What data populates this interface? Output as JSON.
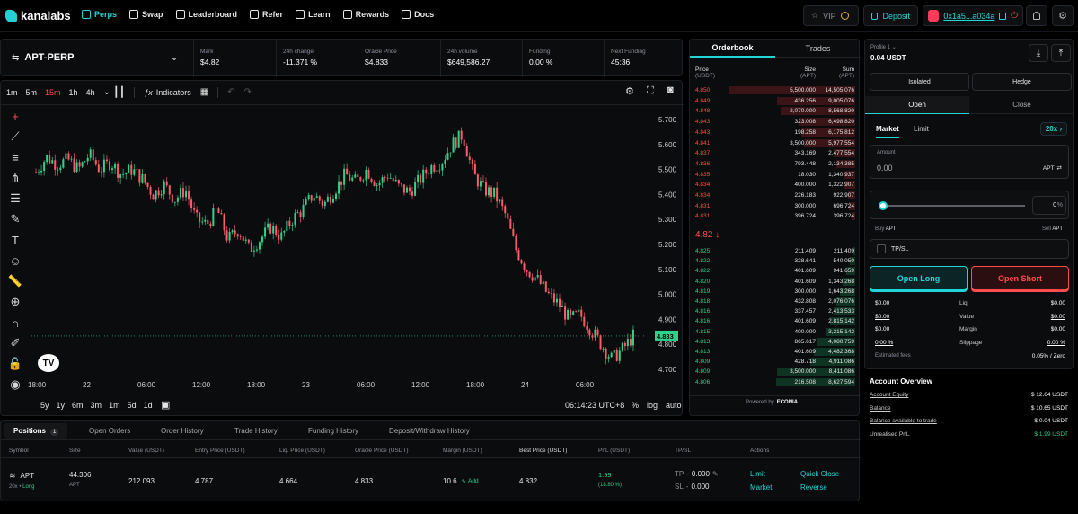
{
  "brand": {
    "name": "kanalabs",
    "accent": "#20d6d6"
  },
  "nav": {
    "items": [
      {
        "label": "Perps",
        "icon": "perps-icon"
      },
      {
        "label": "Swap",
        "icon": "swap-icon"
      },
      {
        "label": "Leaderboard",
        "icon": "leaderboard-icon"
      },
      {
        "label": "Refer",
        "icon": "refer-icon"
      },
      {
        "label": "Learn",
        "icon": "learn-icon"
      },
      {
        "label": "Rewards",
        "icon": "rewards-icon"
      },
      {
        "label": "Docs",
        "icon": "docs-icon"
      }
    ]
  },
  "header": {
    "vip": "VIP",
    "deposit": "Deposit",
    "wallet": "0x1a5...a034a"
  },
  "market": {
    "symbol": "APT-PERP",
    "stats": [
      {
        "label": "Mark",
        "value": "$4.82"
      },
      {
        "label": "24h change",
        "value": "-11.371 %"
      },
      {
        "label": "Oracle Price",
        "value": "$4.833"
      },
      {
        "label": "24h volume",
        "value": "$649,586.27"
      },
      {
        "label": "Funding",
        "value": "0.00 %"
      },
      {
        "label": "Next Funding",
        "value": "45:36"
      }
    ]
  },
  "chart_toolbar": {
    "timeframes": [
      "1m",
      "5m",
      "15m",
      "1h",
      "4h"
    ],
    "active_timeframe": "15m",
    "indicators": "Indicators"
  },
  "chart_footer": {
    "ranges": [
      "5y",
      "1y",
      "6m",
      "3m",
      "1m",
      "5d",
      "1d"
    ],
    "clock": "06:14:23 UTC+8",
    "options": [
      "%",
      "log",
      "auto"
    ]
  },
  "chart_data": {
    "type": "candlestick",
    "x_ticks": [
      "18:00",
      "22",
      "06:00",
      "12:00",
      "18:00",
      "23",
      "06:00",
      "12:00",
      "18:00",
      "24",
      "06:00"
    ],
    "y_ticks": [
      "5.700",
      "5.600",
      "5.500",
      "5.400",
      "5.300",
      "5.200",
      "5.100",
      "5.000",
      "4.900",
      "4.800",
      "4.700"
    ],
    "ylim": [
      4.66,
      5.74
    ],
    "last_price": "4.833",
    "up_color": "#2fd28b",
    "down_color": "#ff5a6a",
    "close_path": [
      5.49,
      5.55,
      5.52,
      5.54,
      5.5,
      5.56,
      5.5,
      5.53,
      5.48,
      5.5,
      5.46,
      5.4,
      5.44,
      5.38,
      5.42,
      5.3,
      5.28,
      5.34,
      5.22,
      5.26,
      5.18,
      5.22,
      5.27,
      5.23,
      5.3,
      5.34,
      5.4,
      5.36,
      5.42,
      5.48,
      5.45,
      5.5,
      5.44,
      5.48,
      5.43,
      5.41,
      5.46,
      5.51,
      5.53,
      5.6,
      5.64,
      5.48,
      5.42,
      5.4,
      5.32,
      5.18,
      5.1,
      5.06,
      5.0,
      4.96,
      4.9,
      4.92,
      4.86,
      4.8,
      4.74,
      4.78,
      4.833
    ]
  },
  "orderbook": {
    "tabs": [
      "Orderbook",
      "Trades"
    ],
    "headers": [
      {
        "t": "Price",
        "s": "(USDT)"
      },
      {
        "t": "Size",
        "s": "(APT)"
      },
      {
        "t": "Sum",
        "s": "(APT)"
      }
    ],
    "asks": [
      [
        "4.850",
        "5,500.000",
        "14,505.076"
      ],
      [
        "4.849",
        "436.256",
        "9,005.076"
      ],
      [
        "4.848",
        "2,070.000",
        "8,568.820"
      ],
      [
        "4.843",
        "323.008",
        "6,498.820"
      ],
      [
        "4.843",
        "198.258",
        "6,175.812"
      ],
      [
        "4.841",
        "3,500.000",
        "5,977.554"
      ],
      [
        "4.837",
        "343.169",
        "2,477.554"
      ],
      [
        "4.836",
        "793.448",
        "2,134.385"
      ],
      [
        "4.835",
        "18.030",
        "1,340.937"
      ],
      [
        "4.834",
        "400.000",
        "1,322.907"
      ],
      [
        "4.834",
        "226.183",
        "922.907"
      ],
      [
        "4.831",
        "300.000",
        "696.724"
      ],
      [
        "4.831",
        "396.724",
        "396.724"
      ]
    ],
    "mid_price": "4.82 ↓",
    "bids": [
      [
        "4.825",
        "211.409",
        "211.409"
      ],
      [
        "4.822",
        "328.641",
        "540.050"
      ],
      [
        "4.822",
        "401.609",
        "941.659"
      ],
      [
        "4.820",
        "401.609",
        "1,343.268"
      ],
      [
        "4.819",
        "300.000",
        "1,643.268"
      ],
      [
        "4.818",
        "432.808",
        "2,076.076"
      ],
      [
        "4.816",
        "337.457",
        "2,413.533"
      ],
      [
        "4.816",
        "401.609",
        "2,815.142"
      ],
      [
        "4.815",
        "400.000",
        "3,215.142"
      ],
      [
        "4.813",
        "865.617",
        "4,080.759"
      ],
      [
        "4.813",
        "401.609",
        "4,482.368"
      ],
      [
        "4.809",
        "428.718",
        "4,911.086"
      ],
      [
        "4.809",
        "3,500.000",
        "8,411.086"
      ],
      [
        "4.806",
        "216.508",
        "8,627.594"
      ]
    ],
    "ask_depth": [
      1.0,
      0.62,
      0.59,
      0.45,
      0.43,
      0.41,
      0.17,
      0.15,
      0.09,
      0.09,
      0.06,
      0.05,
      0.03
    ],
    "bid_depth": [
      0.02,
      0.04,
      0.07,
      0.1,
      0.12,
      0.15,
      0.17,
      0.2,
      0.23,
      0.3,
      0.33,
      0.36,
      0.62,
      0.63
    ],
    "powered_by": "Powered by",
    "powered_brand": "ECONIA"
  },
  "trade_panel": {
    "profile": "Profile 1",
    "balance": "0.04 USDT",
    "margin_modes": [
      "Isolated",
      "Hedge"
    ],
    "sides": [
      "Open",
      "Close"
    ],
    "order_types": [
      "Market",
      "Limit"
    ],
    "leverage": "20x",
    "amount_label": "Amount",
    "amount_placeholder": "0.00",
    "amount_unit": "APT",
    "slider_pct": "0",
    "slider_pct_unit": "%",
    "buy_label": "Buy",
    "buy_asset": "APT",
    "sell_label": "Sell",
    "sell_asset": "APT",
    "tpsl": "TP/SL",
    "open_long": "Open Long",
    "open_short": "Open Short",
    "summary": [
      {
        "left": "$0.00",
        "label": "Liq",
        "right": "$0.00"
      },
      {
        "left": "$0.00",
        "label": "Value",
        "right": "$0.00"
      },
      {
        "left": "$0.00",
        "label": "Margin",
        "right": "$0.00"
      },
      {
        "left": "0.00 %",
        "label": "Slippage",
        "right": "0.00 %"
      }
    ],
    "fees_label": "Estimated fees",
    "fees_value": "0.05% / Zero"
  },
  "account": {
    "title": "Account Overview",
    "rows": [
      {
        "label": "Account Equity",
        "value": "$ 12.64 USDT"
      },
      {
        "label": "Balance",
        "value": "$ 10.65 USDT"
      },
      {
        "label": "Balance available to trade",
        "value": "$ 0.04 USDT"
      },
      {
        "label": "Unrealised PnL",
        "value": "$ 1.99 USDT"
      }
    ]
  },
  "positions": {
    "tabs": [
      "Positions",
      "Open Orders",
      "Order History",
      "Trade History",
      "Funding History",
      "Deposit/Withdraw History"
    ],
    "positions_count": "1",
    "columns": [
      "Symbol",
      "Size",
      "Value (USDT)",
      "Entry Price (USDT)",
      "Liq. Price (USDT)",
      "Oracle Price (USDT)",
      "Margin (USDT)",
      "Best Price (USDT)",
      "PnL (USDT)",
      "TP/SL",
      "Actions"
    ],
    "row": {
      "symbol": "APT",
      "leverage": "20x",
      "side": "Long",
      "size": "44.306",
      "size_unit": "APT",
      "value": "212.093",
      "entry": "4.787",
      "liq": "4.664",
      "oracle": "4.833",
      "margin": "10.6",
      "add": "Add",
      "best": "4.832",
      "pnl": "1.99",
      "pnl_pct": "(18.80 %)",
      "tp_label": "TP",
      "tp_value": "0.000",
      "sl_label": "SL",
      "sl_value": "0.000",
      "actions": [
        "Limit",
        "Quick Close",
        "Market",
        "Reverse"
      ]
    }
  }
}
